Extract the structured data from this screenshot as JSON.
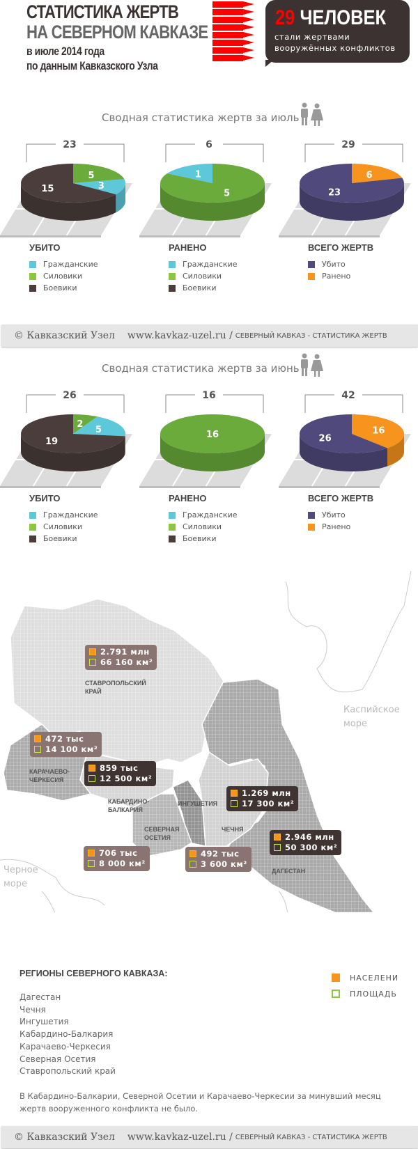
{
  "header": {
    "line1": "СТАТИСТИКА ЖЕРТВ",
    "line2": "НА СЕВЕРНОМ КАВКАЗЕ",
    "line3": "в июле 2014 года",
    "line4": "по данным Кавказского Узла",
    "bubble_number": "29",
    "bubble_word": "ЧЕЛОВЕК",
    "bubble_sub": "стали жертвами вооружённых  конфликтов"
  },
  "colors": {
    "civilians": "#5cc8da",
    "security": "#6aab3b",
    "militants": "#4a3d3b",
    "killed": "#504a7c",
    "wounded": "#f7941d",
    "legend_security": "#8dc63f"
  },
  "sections": [
    {
      "title": "Сводная статистика жертв за июль",
      "icon": "people-icon",
      "charts": [
        {
          "total": "23",
          "label": "УБИТО",
          "legend": [
            "Гражданские",
            "Силовики",
            "Боевики"
          ],
          "legend_colors": [
            "#5cc8da",
            "#8dc63f",
            "#4a3d3b"
          ],
          "slices": [
            {
              "value": 5,
              "color": "#6aab3b"
            },
            {
              "value": 3,
              "color": "#5cc8da"
            },
            {
              "value": 15,
              "color": "#4a3d3b"
            }
          ]
        },
        {
          "total": "6",
          "label": "РАНЕНО",
          "legend": [
            "Гражданские",
            "Силовики",
            "Боевики"
          ],
          "legend_colors": [
            "#5cc8da",
            "#8dc63f",
            "#4a3d3b"
          ],
          "slices": [
            {
              "value": 5,
              "color": "#6aab3b"
            },
            {
              "value": 1,
              "color": "#5cc8da"
            }
          ]
        },
        {
          "total": "29",
          "label": "ВСЕГО ЖЕРТВ",
          "legend": [
            "Убито",
            "Ранено"
          ],
          "legend_colors": [
            "#504a7c",
            "#f7941d"
          ],
          "slices": [
            {
              "value": 6,
              "color": "#f7941d"
            },
            {
              "value": 23,
              "color": "#504a7c"
            }
          ]
        }
      ]
    },
    {
      "title": "Сводная статистика жертв за июнь",
      "icon": "people-icon",
      "charts": [
        {
          "total": "26",
          "label": "УБИТО",
          "legend": [
            "Гражданские",
            "Силовики",
            "Боевики"
          ],
          "legend_colors": [
            "#5cc8da",
            "#8dc63f",
            "#4a3d3b"
          ],
          "slices": [
            {
              "value": 2,
              "color": "#6aab3b"
            },
            {
              "value": 5,
              "color": "#5cc8da"
            },
            {
              "value": 19,
              "color": "#4a3d3b"
            }
          ]
        },
        {
          "total": "16",
          "label": "РАНЕНО",
          "legend": [
            "Гражданские",
            "Силовики",
            "Боевики"
          ],
          "legend_colors": [
            "#5cc8da",
            "#8dc63f",
            "#4a3d3b"
          ],
          "slices": [
            {
              "value": 16,
              "color": "#6aab3b"
            }
          ]
        },
        {
          "total": "42",
          "label": "ВСЕГО ЖЕРТВ",
          "legend": [
            "Убито",
            "Ранено"
          ],
          "legend_colors": [
            "#504a7c",
            "#f7941d"
          ],
          "slices": [
            {
              "value": 16,
              "color": "#f7941d"
            },
            {
              "value": 26,
              "color": "#504a7c"
            }
          ]
        }
      ]
    }
  ],
  "footer": {
    "copyright": "© Кавказский Узел",
    "url": "www.kavkaz-uzel.ru /",
    "section": "СЕВЕРНЫЙ КАВКАЗ - СТАТИСТИКА ЖЕРТВ"
  },
  "map": {
    "regions": [
      {
        "name": "СТАВРОПОЛЬСКИЙ КРАЙ",
        "population": "2.791 млн",
        "area": "66 160 км²"
      },
      {
        "name": "КАРАЧАЕВО-ЧЕРКЕСИЯ",
        "population": "472 тыс",
        "area": "14 100 км²"
      },
      {
        "name": "КАБАРДИНО-БАЛКАРИЯ",
        "population": "859 тыс",
        "area": "12 500 км²"
      },
      {
        "name": "ИНГУШЕТИЯ",
        "population": "492 тыс",
        "area": "3 600 км²"
      },
      {
        "name": "ЧЕЧНЯ",
        "population": "1.269 млн",
        "area": "17 300 км²"
      },
      {
        "name": "СЕВЕРНАЯ ОСЕТИЯ",
        "population": "706 тыс",
        "area": "8 000 км²"
      },
      {
        "name": "ДАГЕСТАН",
        "population": "2.946 млн",
        "area": "50 300 км²"
      }
    ],
    "caspian": "Каспийское море",
    "black_sea": "Черное море"
  },
  "legend": {
    "population": "НАСЕЛЕНИ",
    "area": "ПЛОЩАДЬ"
  },
  "regions_list": {
    "title": "РЕГИОНЫ СЕВЕРНОГО КАВКАЗА:",
    "items": [
      "Дагестан",
      "Чечня",
      "Ингушетия",
      "Кабардино-Балкария",
      "Карачаево-Черкесия",
      "Северная Осетия",
      "Ставропольский край"
    ],
    "note": "В Кабардино-Балкарии, Северной Осетии и Карачаево-Черкесии за минувший месяц жертв вооруженного конфликта не было."
  }
}
